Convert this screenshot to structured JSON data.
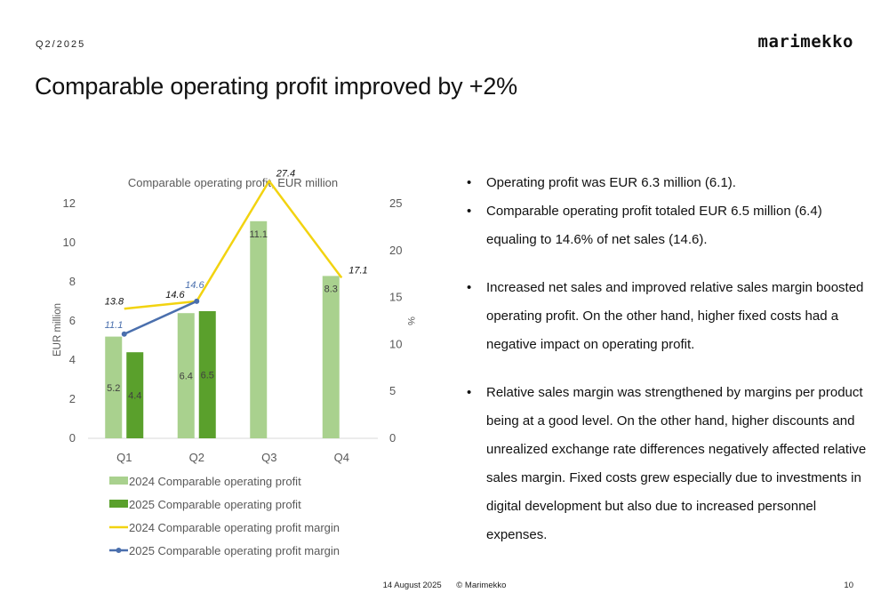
{
  "header": {
    "period": "Q2/2025",
    "logo": "marimekko",
    "title": "Comparable operating profit improved by +2%"
  },
  "chart_data": {
    "type": "bar",
    "title": "Comparable operating profit, EUR million",
    "categories": [
      "Q1",
      "Q2",
      "Q3",
      "Q4"
    ],
    "ylabel": "EUR million",
    "y2label": "%",
    "ylim": [
      0,
      12
    ],
    "y_ticks": [
      0,
      2,
      4,
      6,
      8,
      10,
      12
    ],
    "y2lim": [
      0,
      25
    ],
    "y2_ticks": [
      0,
      5,
      10,
      15,
      20,
      25
    ],
    "grid": false,
    "legend_position": "bottom",
    "series": [
      {
        "name": "2024 Comparable operating profit",
        "type": "bar",
        "axis": "left",
        "color": "#a9d18e",
        "values": [
          5.2,
          6.4,
          11.1,
          8.3
        ],
        "labels": [
          "5.2",
          "6.4",
          "11.1",
          "8.3"
        ]
      },
      {
        "name": "2025 Comparable operating profit",
        "type": "bar",
        "axis": "left",
        "color": "#5aa02c",
        "values": [
          4.4,
          6.5,
          null,
          null
        ],
        "labels": [
          "4.4",
          "6.5",
          "",
          ""
        ]
      },
      {
        "name": "2024 Comparable operating profit margin",
        "type": "line",
        "axis": "right",
        "color": "#f2d310",
        "values": [
          13.8,
          14.6,
          27.4,
          17.1
        ],
        "labels": [
          "13.8",
          "14.6",
          "27.4",
          "17.1"
        ]
      },
      {
        "name": "2025 Comparable operating profit margin",
        "type": "line",
        "axis": "right",
        "color": "#4a6fad",
        "markers": true,
        "values": [
          11.1,
          14.6,
          null,
          null
        ],
        "labels": [
          "11.1",
          "14.6",
          "",
          ""
        ]
      }
    ]
  },
  "bullets": [
    "Operating profit was EUR 6.3 million (6.1).",
    "Comparable operating profit totaled EUR 6.5 million (6.4) equaling to 14.6% of net sales (14.6).",
    "Increased net sales and improved relative sales margin boosted operating profit. On the other hand, higher fixed costs had a negative impact on operating profit.",
    "Relative sales margin was strengthened by margins per product being at a good level. On the other hand, higher discounts and unrealized exchange rate differences negatively affected relative sales margin. Fixed costs grew especially due to investments in digital development but also due to increased personnel expenses."
  ],
  "footer": {
    "date": "14 August 2025",
    "copyright": "© Marimekko",
    "page": "10"
  }
}
